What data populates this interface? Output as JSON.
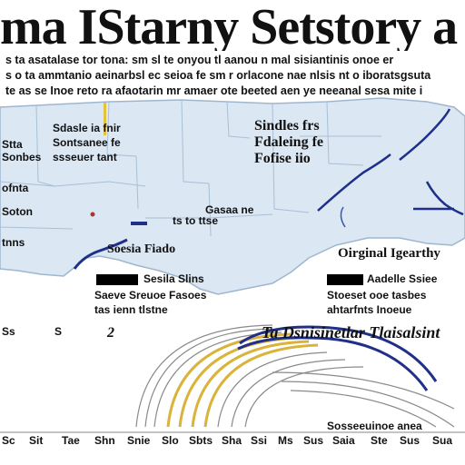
{
  "title": "ma IStarny Setstory a",
  "intro": [
    "s ta asatalase tor tona: sm sl te onyou tl aanou n mal sisiantinis onoe er",
    "s o ta ammtanio aeinarbsl ec seioa fe sm r orlacone nae nlsis nt o iboratsgsuta",
    "te as se Inoe reto ra afaotarin mr amaer ote beeted aen ye neeanal sesa mite i"
  ],
  "map": {
    "labels": [
      {
        "id": "left-1",
        "text": "Stta"
      },
      {
        "id": "left-2",
        "text": "Sonbes"
      },
      {
        "id": "left-3",
        "text": "ofnta"
      },
      {
        "id": "left-4",
        "text": "Soton"
      },
      {
        "id": "left-5",
        "text": "tnns"
      },
      {
        "id": "center-1",
        "text": "Sdasle ia fnir"
      },
      {
        "id": "center-2",
        "text": "Sontsanee fe"
      },
      {
        "id": "center-3",
        "text": "ssseuer tant"
      },
      {
        "id": "right-1",
        "text": "Sindles frs"
      },
      {
        "id": "right-2",
        "text": "Fdaleing fe"
      },
      {
        "id": "right-3",
        "text": "Fofise iio"
      },
      {
        "id": "mid-1",
        "text": "Gasaa ne"
      },
      {
        "id": "mid-2",
        "text": "ts to ttse"
      },
      {
        "id": "south-1",
        "text": "Soesia Fiado"
      },
      {
        "id": "east-1",
        "text": "Oirginal Igearthy"
      }
    ]
  },
  "legend": [
    {
      "label": "Sesila Slins",
      "sub1": "Saeve Sreuoe Fasoes",
      "sub2": "tas ienn tlstne"
    },
    {
      "label": "Aadelle Ssiee",
      "sub1": "Stoeset ooe tasbes",
      "sub2": "ahtarfnts Inoeue"
    }
  ],
  "curve_caption": "Ta Dsnisinetlar Tlaisalsint",
  "side_marks": [
    "Ss",
    "S",
    "2"
  ],
  "footer_top": "Sosseeuinoe anea",
  "footer": [
    "Sc",
    "Sit",
    "Tae",
    "Shn",
    "Snie",
    "Slo",
    "Sbts",
    "Sha",
    "Ssi",
    "Ms",
    "Sus",
    "Saia",
    "Ste",
    "Sus",
    "Sua"
  ],
  "colors": {
    "land": "#dbe7f3",
    "land_edge": "#9fb6cf",
    "water": "#ffffff",
    "navy": "#1f2f8a",
    "gold": "#d9b33a",
    "gray": "#8a8a8a"
  }
}
